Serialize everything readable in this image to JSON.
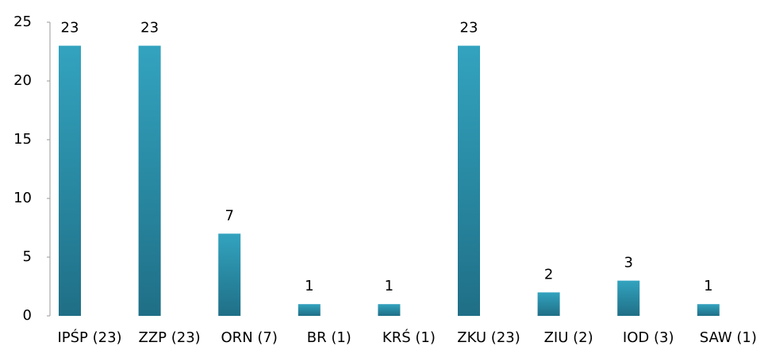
{
  "chart_data": {
    "type": "bar",
    "categories": [
      "IPŚP (23)",
      "ZZP (23)",
      "ORN (7)",
      "BR (1)",
      "KRŚ (1)",
      "ZKU (23)",
      "ZIU (2)",
      "IOD (3)",
      "SAW (1)"
    ],
    "values": [
      23,
      23,
      7,
      1,
      1,
      23,
      2,
      3,
      1
    ],
    "color": "#2a8faa",
    "ylim": [
      0,
      25
    ],
    "yticks": [
      0,
      5,
      10,
      15,
      20,
      25
    ],
    "grid": false
  }
}
